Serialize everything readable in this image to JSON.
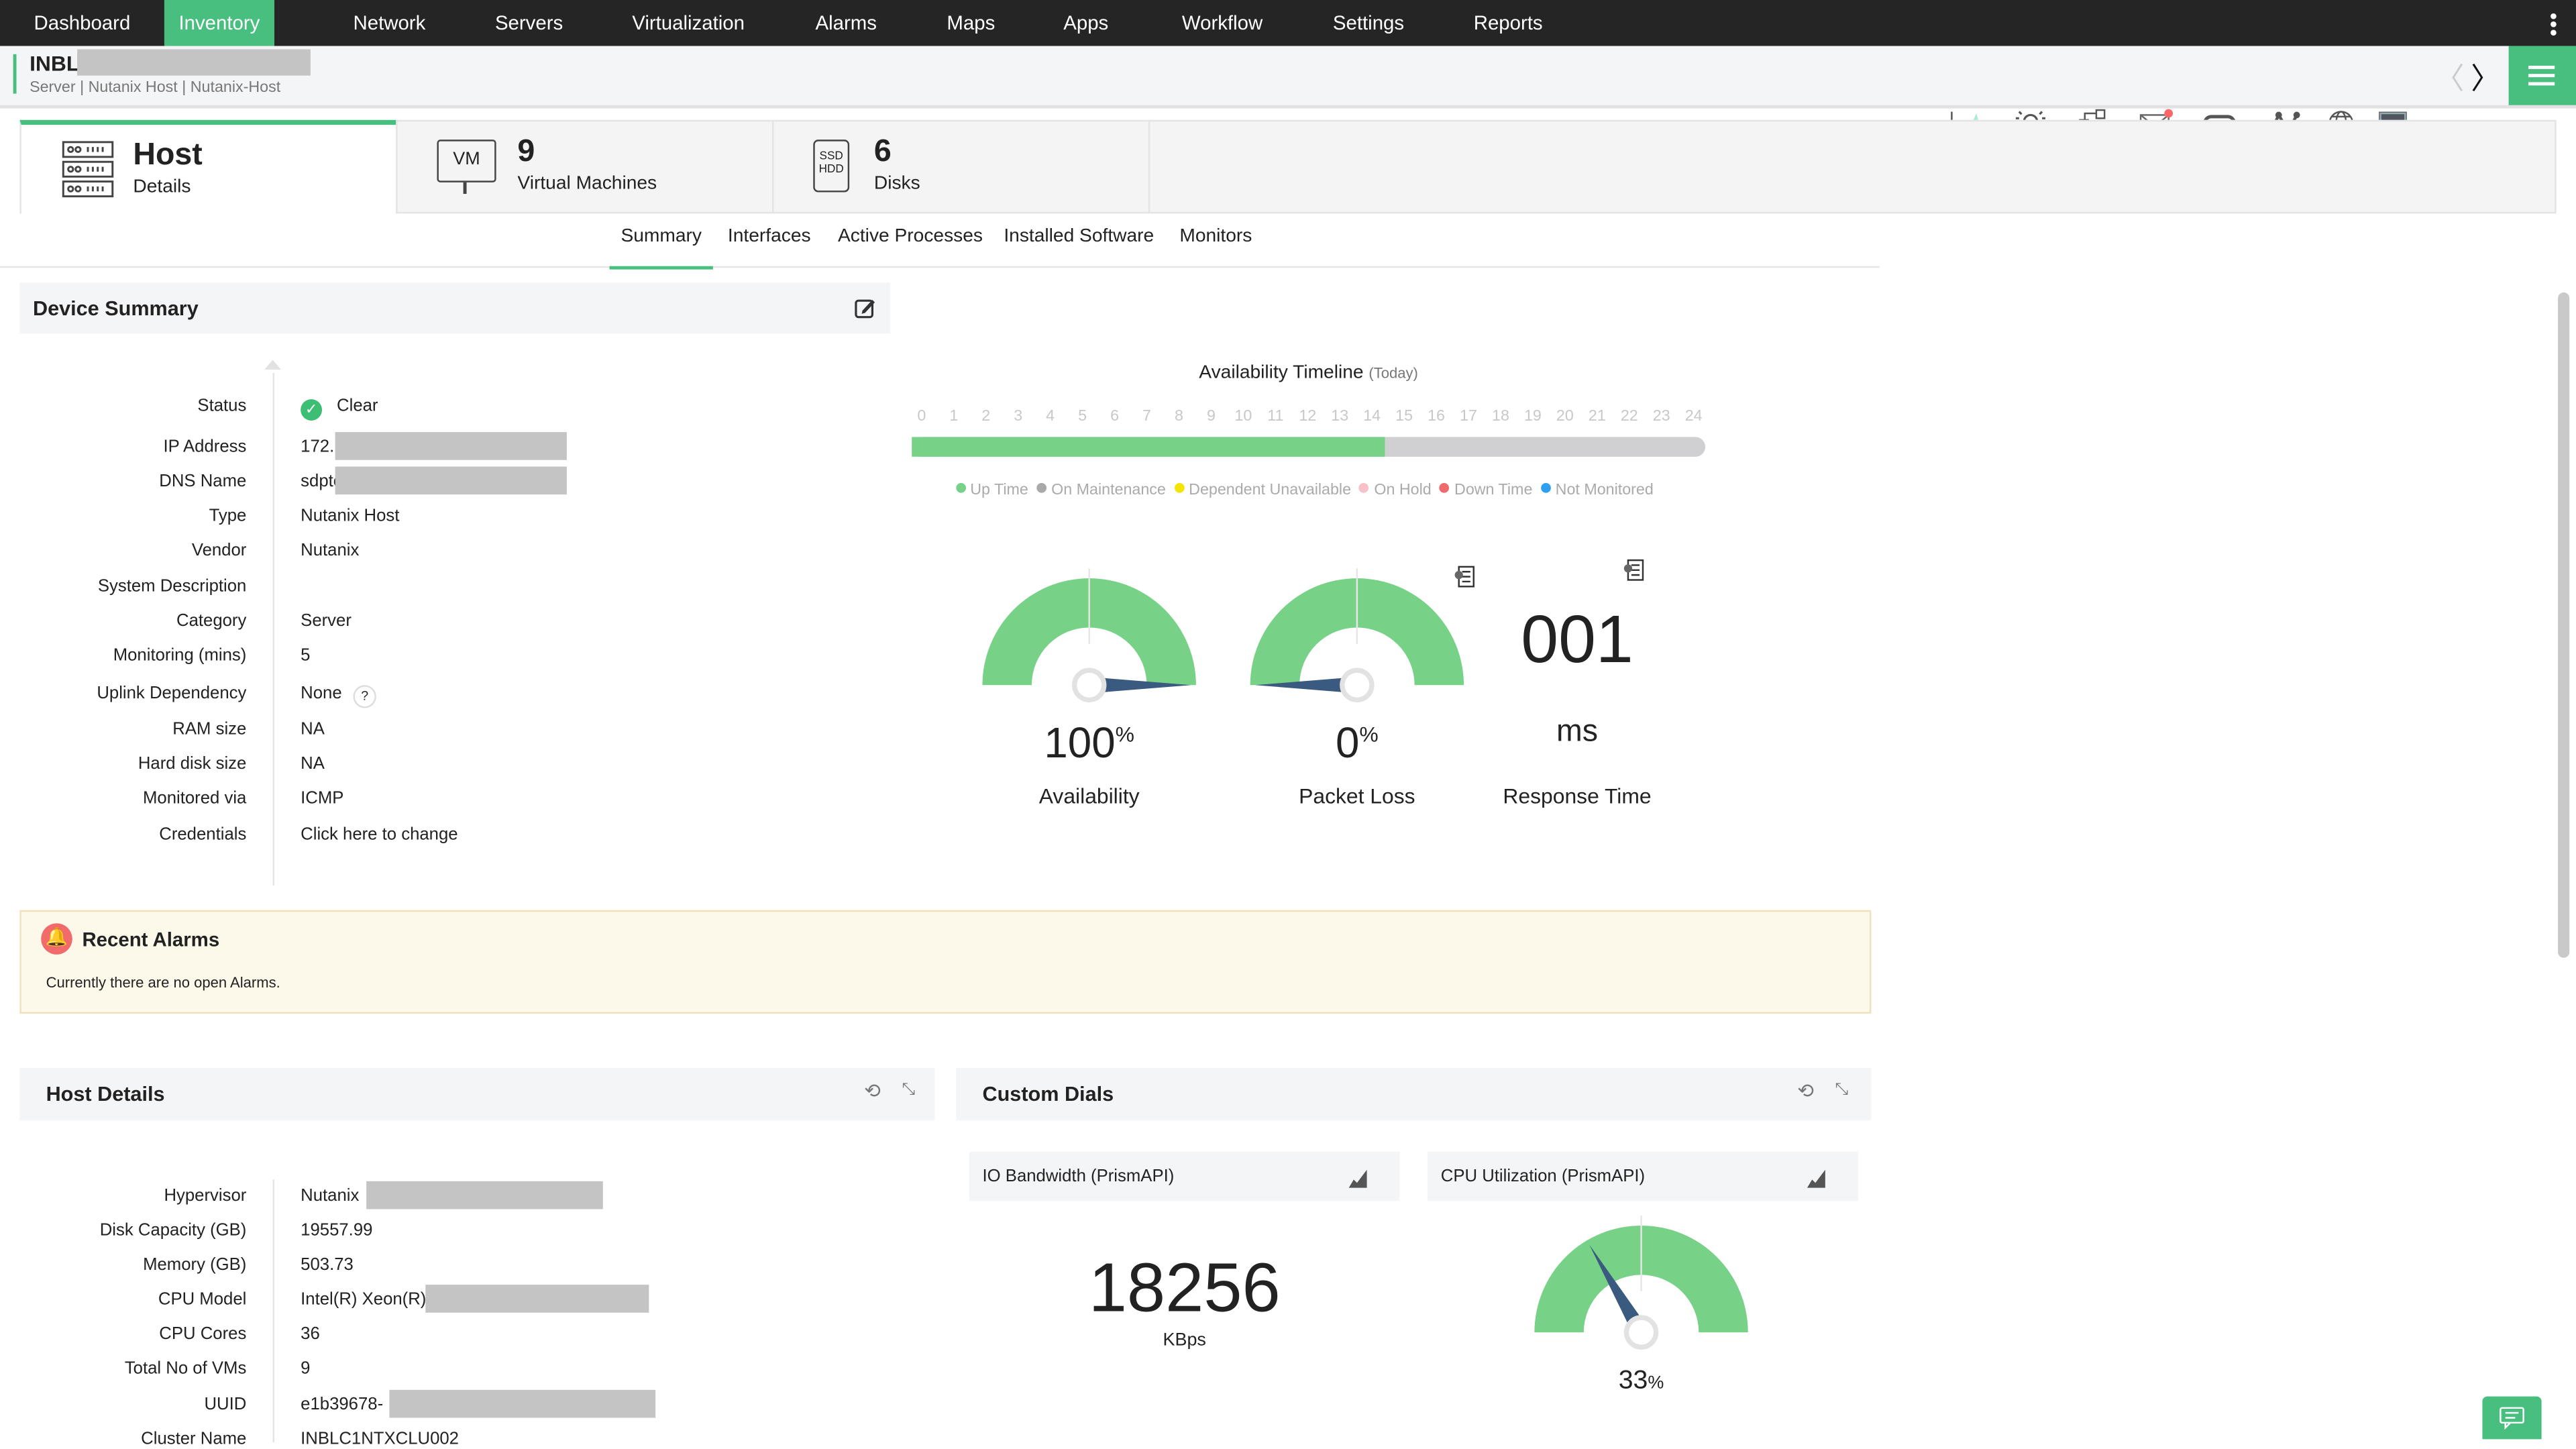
{
  "nav": {
    "items": [
      "Dashboard",
      "Inventory",
      "Network",
      "Servers",
      "Virtualization",
      "Alarms",
      "Maps",
      "Apps",
      "Workflow",
      "Settings",
      "Reports"
    ],
    "active": "Inventory"
  },
  "device": {
    "name": "INBL",
    "breadcrumb": "Server | Nutanix Host | Nutanix-Host"
  },
  "toolbar": {
    "icons": [
      "graph-icon",
      "alarm-bell-icon",
      "workflow-icon",
      "mail-icon",
      "sync-icon",
      "network-path-icon",
      "globe-icon",
      "terminal-icon",
      "chevron-left-icon",
      "chevron-right-icon",
      "hamburger-menu-icon"
    ]
  },
  "cards": [
    {
      "title": "Host",
      "subtitle": "Details"
    },
    {
      "title": "9",
      "subtitle": "Virtual Machines",
      "icon_text": "VM"
    },
    {
      "title": "6",
      "subtitle": "Disks",
      "icon_text": "SSD HDD"
    }
  ],
  "subtabs": [
    "Summary",
    "Interfaces",
    "Active Processes",
    "Installed Software",
    "Monitors"
  ],
  "device_summary": {
    "title": "Device Summary",
    "rows": [
      {
        "label": "Status",
        "value": "Clear"
      },
      {
        "label": "IP Address",
        "value": "172."
      },
      {
        "label": "DNS Name",
        "value": "sdpte"
      },
      {
        "label": "Type",
        "value": "Nutanix Host"
      },
      {
        "label": "Vendor",
        "value": "Nutanix"
      },
      {
        "label": "System Description",
        "value": ""
      },
      {
        "label": "Category",
        "value": "Server"
      },
      {
        "label": "Monitoring (mins)",
        "value": "5"
      },
      {
        "label": "Uplink Dependency",
        "value": "None"
      },
      {
        "label": "RAM size",
        "value": "NA"
      },
      {
        "label": "Hard disk size",
        "value": "NA"
      },
      {
        "label": "Monitored via",
        "value": "ICMP"
      },
      {
        "label": "Credentials",
        "value": "Click here to change"
      }
    ],
    "help": "?"
  },
  "timeline": {
    "title": "Availability Timeline",
    "subtitle": "(Today)",
    "hours": [
      "0",
      "1",
      "2",
      "3",
      "4",
      "5",
      "6",
      "7",
      "8",
      "9",
      "10",
      "11",
      "12",
      "13",
      "14",
      "15",
      "16",
      "17",
      "18",
      "19",
      "20",
      "21",
      "22",
      "23",
      "24"
    ],
    "uptime_until_hour": 14.3,
    "legend": [
      {
        "label": "Up Time",
        "color": "#77d287"
      },
      {
        "label": "On Maintenance",
        "color": "#a9a9a9"
      },
      {
        "label": "Dependent Unavailable",
        "color": "#f5e400"
      },
      {
        "label": "On Hold",
        "color": "#f8c0c8"
      },
      {
        "label": "Down Time",
        "color": "#ef6a6a"
      },
      {
        "label": "Not Monitored",
        "color": "#2f9ff0"
      }
    ]
  },
  "gauges": {
    "availability": {
      "value": 100,
      "display": "100",
      "unit": "%",
      "label": "Availability"
    },
    "packet_loss": {
      "value": 0,
      "display": "0",
      "unit": "%",
      "label": "Packet Loss"
    },
    "response_time": {
      "display": "001",
      "unit": "ms",
      "label": "Response Time"
    }
  },
  "alarms": {
    "title": "Recent Alarms",
    "message": "Currently there are no open Alarms."
  },
  "host_details": {
    "title": "Host Details",
    "rows": [
      {
        "label": "Hypervisor",
        "value": "Nutanix"
      },
      {
        "label": "Disk Capacity (GB)",
        "value": "19557.99"
      },
      {
        "label": "Memory (GB)",
        "value": "503.73"
      },
      {
        "label": "CPU Model",
        "value": "Intel(R) Xeon(R)"
      },
      {
        "label": "CPU Cores",
        "value": "36"
      },
      {
        "label": "Total No of VMs",
        "value": "9"
      },
      {
        "label": "UUID",
        "value": "e1b39678-"
      },
      {
        "label": "Cluster Name",
        "value": "INBLC1NTXCLU002"
      }
    ]
  },
  "custom_dials": {
    "title": "Custom Dials",
    "io": {
      "title": "IO Bandwidth (PrismAPI)",
      "value": "18256",
      "unit": "KBps"
    },
    "cpu": {
      "title": "CPU Utilization (PrismAPI)",
      "value": 33,
      "display": "33",
      "unit": "%"
    }
  },
  "colors": {
    "accent": "#48bf7f",
    "gauge": "#77d287",
    "needle": "#3a5a80",
    "nav_bg": "#252525"
  }
}
